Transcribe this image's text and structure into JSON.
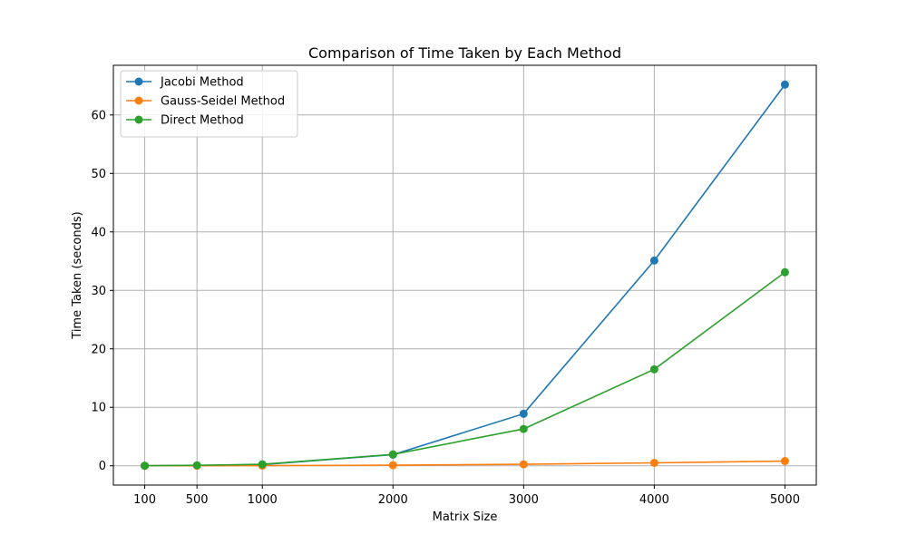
{
  "chart_data": {
    "type": "line",
    "title": "Comparison of Time Taken by Each Method",
    "xlabel": "Matrix Size",
    "ylabel": "Time Taken (seconds)",
    "x": [
      100,
      500,
      1000,
      2000,
      3000,
      4000,
      5000
    ],
    "xticks": [
      "100",
      "500",
      "1000",
      "2000",
      "3000",
      "4000",
      "5000"
    ],
    "yticks": [
      0,
      10,
      20,
      30,
      40,
      50,
      60
    ],
    "xlim": [
      -140,
      5240
    ],
    "ylim": [
      -3.3,
      68.5
    ],
    "grid": true,
    "legend": "top-left",
    "series": [
      {
        "name": "Jacobi Method",
        "color": "#1f77b4",
        "values": [
          0.0,
          0.05,
          0.2,
          1.9,
          8.9,
          35.1,
          65.2
        ]
      },
      {
        "name": "Gauss-Seidel Method",
        "color": "#ff7f0e",
        "values": [
          0.0,
          0.01,
          0.03,
          0.1,
          0.25,
          0.5,
          0.8
        ]
      },
      {
        "name": "Direct Method",
        "color": "#2ca02c",
        "values": [
          0.0,
          0.08,
          0.25,
          1.95,
          6.3,
          16.5,
          33.1
        ]
      }
    ]
  }
}
